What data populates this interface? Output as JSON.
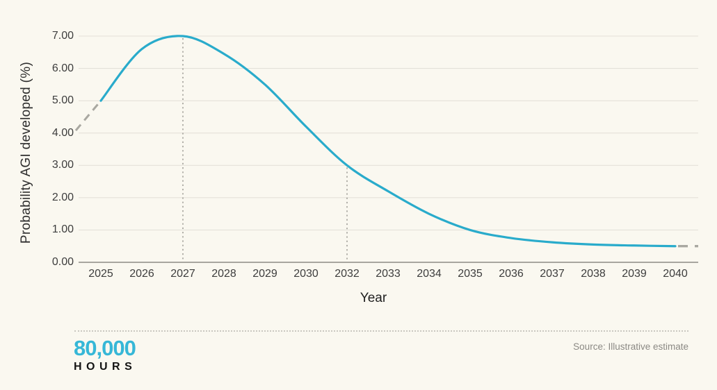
{
  "chart_data": {
    "type": "line",
    "xlabel": "Year",
    "ylabel": "Probability AGI developed (%)",
    "categories": [
      "2025",
      "2026",
      "2027",
      "2028",
      "2029",
      "2030",
      "2032",
      "2033",
      "2034",
      "2035",
      "2036",
      "2037",
      "2038",
      "2039",
      "2040"
    ],
    "series": [
      {
        "name": "Probability AGI developed (%)",
        "values": [
          5.0,
          6.6,
          7.0,
          6.45,
          5.5,
          4.2,
          3.0,
          2.2,
          1.5,
          1.0,
          0.75,
          0.62,
          0.55,
          0.52,
          0.5
        ]
      }
    ],
    "y_tick_labels": [
      "7.00",
      "6.00",
      "5.00",
      "4.00",
      "3.00",
      "2.00",
      "1.00",
      "0.00"
    ],
    "ylim": [
      0,
      7
    ],
    "grid": true,
    "legend": "none",
    "dashed_lead_in": {
      "start_value": 4.08,
      "end_category": "2025",
      "end_value": 5.0
    },
    "dashed_lead_out": {
      "start_category": "2040",
      "value": 0.5
    },
    "annotations": [
      {
        "type": "vline",
        "category": "2027",
        "from_value": 7.0,
        "to_value": 0
      },
      {
        "type": "vline",
        "category": "2032",
        "from_value": 3.0,
        "to_value": 0
      }
    ]
  },
  "footer": {
    "logo_line1": "80,000",
    "logo_line2": "HOURS",
    "source": "Source: Illustrative estimate"
  },
  "colors": {
    "background": "#FAF8F0",
    "curve": "#29ABCB",
    "dashed_gray": "#A9A8A1",
    "gridline": "#E4E1D9",
    "axis_line": "#8C8A84",
    "logo_cyan": "#36B7D7",
    "text_dark": "#2E2E2E",
    "text_gray": "#8B8984"
  }
}
